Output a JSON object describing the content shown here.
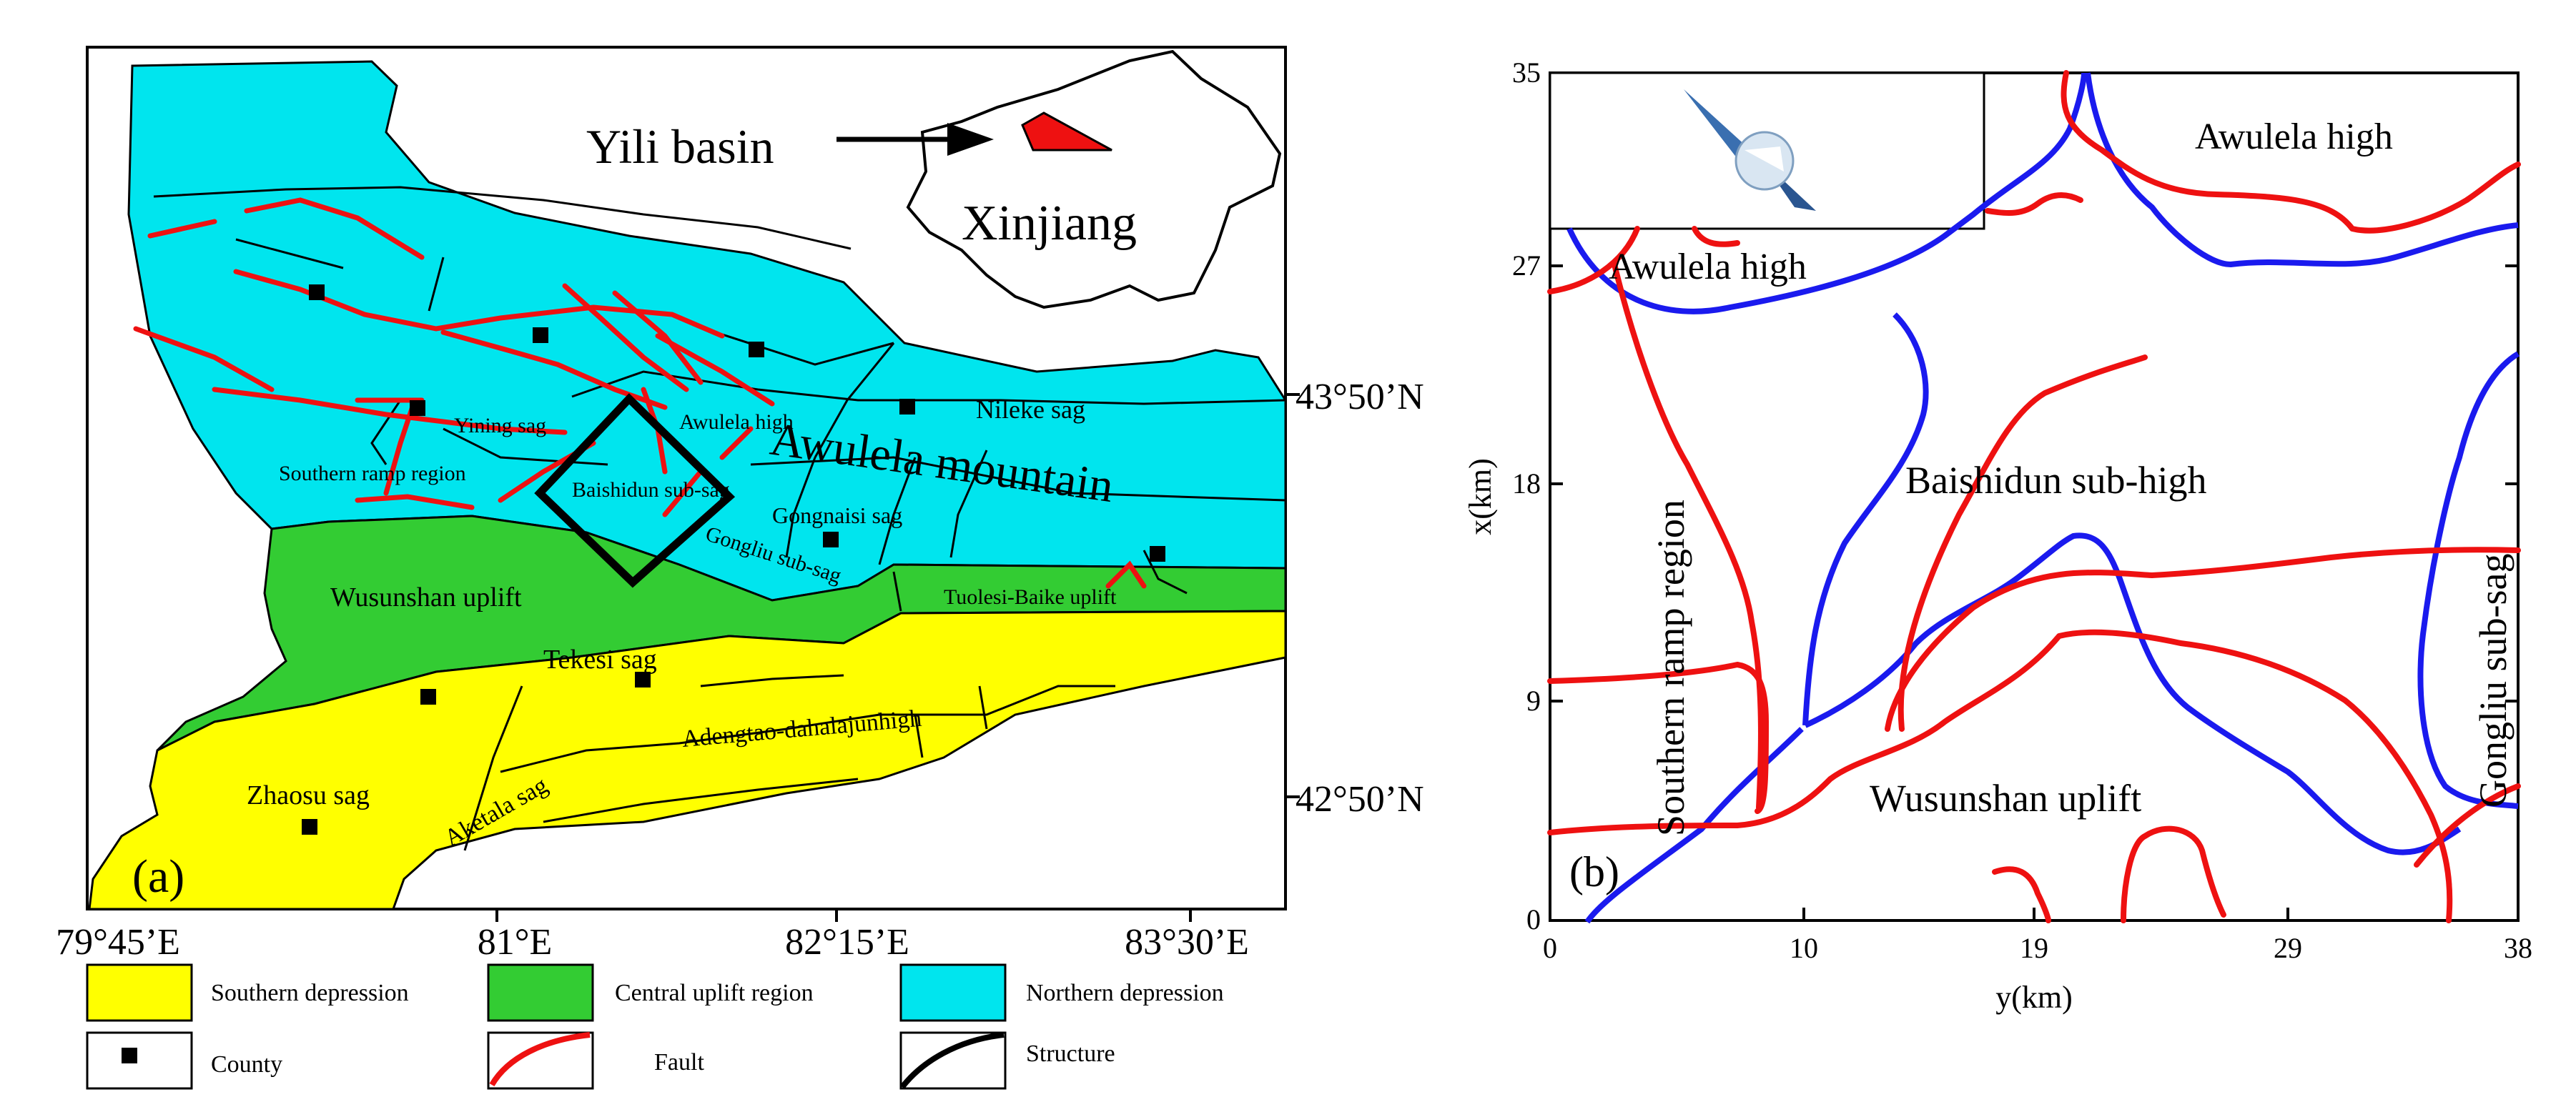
{
  "panel_a": {
    "label": "(a)",
    "inset": {
      "arrow_label": "Yili basin",
      "region": "Xinjiang"
    },
    "regions": {
      "mountain": "Awulela mountain",
      "yining": "Yining sag",
      "awulela_high": "Awulela high",
      "nileke": "Nileke sag",
      "southern_ramp": "Southern ramp region",
      "baishidun": "Baishidun sub-sag",
      "gongnaisi": "Gongnaisi sag",
      "gongliu": "Gongliu sub-sag",
      "wusunshan": "Wusunshan uplift",
      "tuolesi": "Tuolesi-Baike uplift",
      "tekesi": "Tekesi sag",
      "adengtao": "Adengtao-dahalajunhigh",
      "zhaosu": "Zhaosu sag",
      "aketala": "Aketala sag"
    },
    "lat_ticks": [
      "43°50’N",
      "42°50’N"
    ],
    "lon_ticks": [
      "79°45’E",
      "81°E",
      "82°15’E",
      "83°30’E"
    ]
  },
  "legend": {
    "southern_depression": "Southern depression",
    "central_uplift": "Central uplift region",
    "northern_depression": "Northern depression",
    "county": "County",
    "fault": "Fault",
    "structure": "Structure"
  },
  "panel_b": {
    "label": "(b)",
    "xlabel": "y(km)",
    "ylabel": "x(km)",
    "x_ticks": [
      "0",
      "10",
      "19",
      "29",
      "38"
    ],
    "y_ticks": [
      "0",
      "9",
      "18",
      "27",
      "35"
    ],
    "regions": {
      "awulela_high_top": "Awulela high",
      "awulela_high_left": "Awulela high",
      "baishidun": "Baishidun sub-high",
      "southern_ramp": "Southern ramp region",
      "gongliu": "Gongliu sub-sag",
      "wusunshan": "Wusunshan uplift"
    }
  },
  "colors": {
    "southern_depression": "#ffff00",
    "central_uplift": "#33cc33",
    "northern_depression": "#00e5ee",
    "fault": "#ee1111",
    "structure_line": "#000000",
    "panel_b_blue": "#1a1aee"
  }
}
